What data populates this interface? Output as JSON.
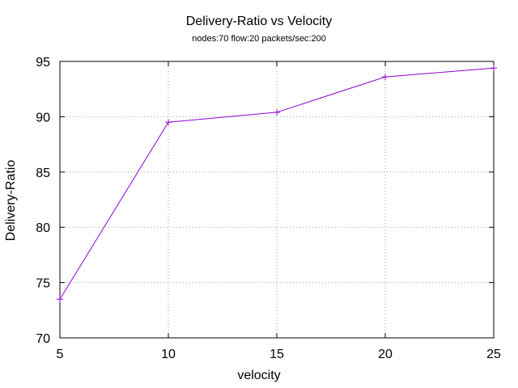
{
  "chart_data": {
    "type": "line",
    "title": "Delivery-Ratio vs Velocity",
    "subtitle": "nodes:70  flow:20  packets/sec:200",
    "xlabel": "velocity",
    "ylabel": "Delivery-Ratio",
    "x": [
      5,
      10,
      15,
      20,
      25
    ],
    "series": [
      {
        "values": [
          73.5,
          89.5,
          90.4,
          93.6,
          94.4
        ],
        "color": "#9400d3",
        "marker": "plus"
      }
    ],
    "xlim": [
      5,
      25
    ],
    "ylim": [
      70,
      95
    ],
    "xticks": [
      "5",
      "10",
      "15",
      "20",
      "25"
    ],
    "yticks": [
      "70",
      "75",
      "80",
      "85",
      "90",
      "95"
    ],
    "grid": true,
    "legend": "none"
  }
}
